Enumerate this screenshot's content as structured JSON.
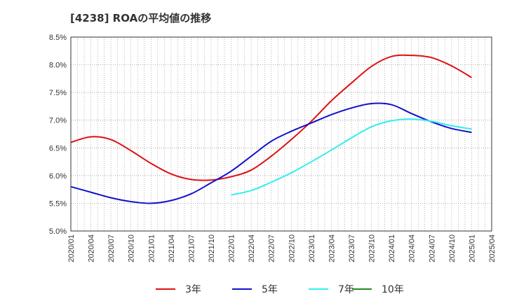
{
  "chart_data": {
    "type": "line",
    "title": "[4238]  ROAの平均値の推移",
    "xlabel": "",
    "ylabel": "",
    "ylim": [
      5.0,
      8.5
    ],
    "y_ticks": [
      "5.0%",
      "5.5%",
      "6.0%",
      "6.5%",
      "7.0%",
      "7.5%",
      "8.0%",
      "8.5%"
    ],
    "x_ticks": [
      "2020/01",
      "2020/04",
      "2020/07",
      "2020/10",
      "2021/01",
      "2021/04",
      "2021/07",
      "2021/10",
      "2022/01",
      "2022/04",
      "2022/07",
      "2022/10",
      "2023/01",
      "2023/04",
      "2023/07",
      "2023/10",
      "2024/01",
      "2024/04",
      "2024/07",
      "2024/10",
      "2025/01",
      "2025/04"
    ],
    "grid": true,
    "legend_position": "bottom",
    "series": [
      {
        "name": "3年",
        "color": "#dd1111",
        "points": [
          [
            "2020/01",
            6.6
          ],
          [
            "2020/04",
            6.7
          ],
          [
            "2020/07",
            6.65
          ],
          [
            "2020/10",
            6.45
          ],
          [
            "2021/01",
            6.22
          ],
          [
            "2021/04",
            6.03
          ],
          [
            "2021/07",
            5.93
          ],
          [
            "2021/10",
            5.92
          ],
          [
            "2022/01",
            5.98
          ],
          [
            "2022/04",
            6.1
          ],
          [
            "2022/07",
            6.35
          ],
          [
            "2022/10",
            6.65
          ],
          [
            "2023/01",
            6.98
          ],
          [
            "2023/04",
            7.35
          ],
          [
            "2023/07",
            7.67
          ],
          [
            "2023/10",
            7.97
          ],
          [
            "2024/01",
            8.15
          ],
          [
            "2024/04",
            8.17
          ],
          [
            "2024/07",
            8.13
          ],
          [
            "2024/10",
            7.98
          ],
          [
            "2025/01",
            7.77
          ]
        ]
      },
      {
        "name": "5年",
        "color": "#1111cc",
        "points": [
          [
            "2020/01",
            5.8
          ],
          [
            "2020/04",
            5.7
          ],
          [
            "2020/07",
            5.6
          ],
          [
            "2020/10",
            5.53
          ],
          [
            "2021/01",
            5.5
          ],
          [
            "2021/04",
            5.55
          ],
          [
            "2021/07",
            5.67
          ],
          [
            "2021/10",
            5.87
          ],
          [
            "2022/01",
            6.08
          ],
          [
            "2022/04",
            6.35
          ],
          [
            "2022/07",
            6.62
          ],
          [
            "2022/10",
            6.8
          ],
          [
            "2023/01",
            6.95
          ],
          [
            "2023/04",
            7.1
          ],
          [
            "2023/07",
            7.22
          ],
          [
            "2023/10",
            7.3
          ],
          [
            "2024/01",
            7.28
          ],
          [
            "2024/04",
            7.12
          ],
          [
            "2024/07",
            6.97
          ],
          [
            "2024/10",
            6.85
          ],
          [
            "2025/01",
            6.78
          ]
        ]
      },
      {
        "name": "7年",
        "color": "#33eeee",
        "points": [
          [
            "2022/01",
            5.65
          ],
          [
            "2022/04",
            5.73
          ],
          [
            "2022/07",
            5.88
          ],
          [
            "2022/10",
            6.05
          ],
          [
            "2023/01",
            6.25
          ],
          [
            "2023/04",
            6.46
          ],
          [
            "2023/07",
            6.68
          ],
          [
            "2023/10",
            6.88
          ],
          [
            "2024/01",
            6.99
          ],
          [
            "2024/04",
            7.02
          ],
          [
            "2024/07",
            6.98
          ],
          [
            "2024/10",
            6.9
          ],
          [
            "2025/01",
            6.84
          ]
        ]
      },
      {
        "name": "10年",
        "color": "#228822",
        "points": []
      }
    ]
  }
}
